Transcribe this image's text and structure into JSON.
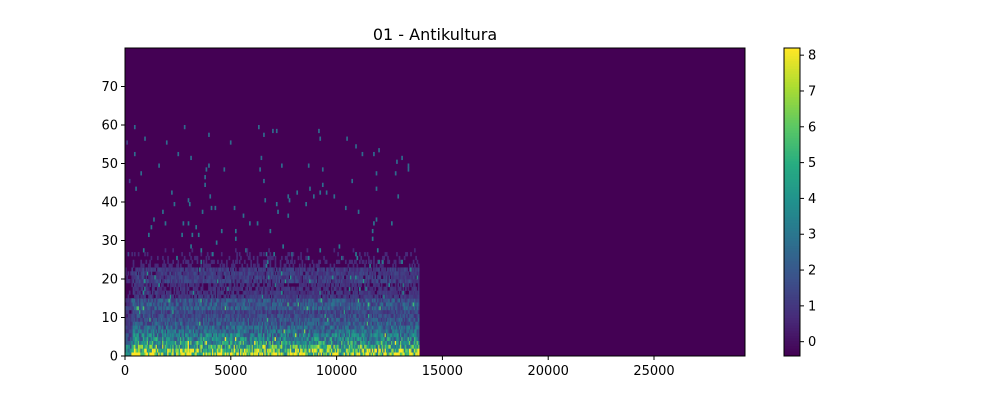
{
  "chart_data": {
    "type": "heatmap",
    "title": "01 - Antikultura",
    "xlabel": "",
    "ylabel": "",
    "xlim": [
      0,
      29300
    ],
    "ylim": [
      0,
      80
    ],
    "x_ticks": [
      0,
      5000,
      10000,
      15000,
      20000,
      25000
    ],
    "y_ticks": [
      0,
      10,
      20,
      30,
      40,
      50,
      60,
      70
    ],
    "data_extent_x": [
      0,
      13900
    ],
    "colorbar": {
      "colormap": "viridis",
      "range": [
        -0.4,
        8.2
      ],
      "ticks": [
        0,
        1,
        2,
        3,
        4,
        5,
        6,
        7,
        8
      ]
    },
    "colors": {
      "min": "#440154",
      "max": "#fde725"
    }
  }
}
